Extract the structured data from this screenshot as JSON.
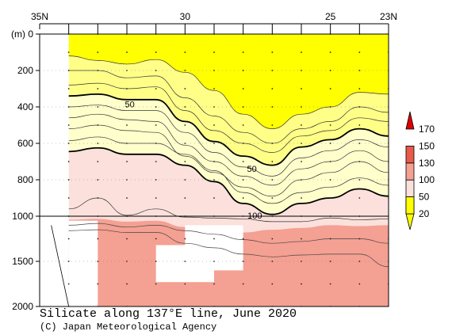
{
  "title": "Silicate along 137°E line, June 2020",
  "credit": "(C) Japan Meteorological Agency",
  "colors": {
    "yellow": "#ffff00",
    "lightyellow": "#ffff88",
    "paleyellow": "#ffffcc",
    "pink": "#fbe0dc",
    "salmon": "#f4a092",
    "red": "#e85a4a",
    "darkred": "#dd0000"
  },
  "chart_data": {
    "type": "contour",
    "variable": "Silicate",
    "x_axis": {
      "labels": [
        "35N",
        "30",
        "25",
        "23N"
      ],
      "label_positions_lat": [
        35,
        30,
        25,
        23
      ],
      "range": [
        35,
        23
      ]
    },
    "y_axis": {
      "unit_label": "(m)",
      "ticks": [
        0,
        200,
        400,
        600,
        800,
        1000,
        1500,
        2000
      ],
      "range": [
        0,
        2000
      ],
      "scale_break_at": 1000
    },
    "station_latitudes": [
      34,
      33,
      32,
      31,
      30,
      29,
      28,
      27,
      26,
      25,
      24,
      23
    ],
    "colorbar": {
      "levels": [
        20,
        50,
        100,
        130,
        150,
        170
      ],
      "labels": [
        "20",
        "50",
        "100",
        "130",
        "150",
        "170"
      ],
      "fill_colors": [
        "#ffff00",
        "#ffff88",
        "#fbe0dc",
        "#f4a092",
        "#e85a4a",
        "#dd0000"
      ]
    },
    "contour_labels": [
      {
        "text": "50",
        "lat": 31.9,
        "depth": 385
      },
      {
        "text": "50",
        "lat": 27.7,
        "depth": 740
      },
      {
        "text": "100",
        "lat": 27.6,
        "depth": 995
      }
    ],
    "isolines_depth_m": {
      "lat": [
        34,
        33,
        32,
        31,
        30,
        29,
        28,
        27,
        26,
        25,
        24,
        23
      ],
      "si_20": [
        120,
        145,
        165,
        140,
        210,
        310,
        440,
        520,
        440,
        400,
        320,
        330
      ],
      "si_30": [
        200,
        200,
        240,
        230,
        350,
        450,
        540,
        600,
        520,
        480,
        400,
        430
      ],
      "si_40": [
        280,
        270,
        300,
        290,
        420,
        530,
        600,
        650,
        560,
        530,
        460,
        480
      ],
      "si_50": [
        340,
        330,
        360,
        360,
        480,
        590,
        670,
        720,
        620,
        580,
        520,
        560
      ],
      "si_70": [
        460,
        440,
        470,
        480,
        610,
        700,
        780,
        830,
        740,
        700,
        640,
        700
      ],
      "si_100": [
        645,
        625,
        660,
        660,
        720,
        810,
        930,
        990,
        930,
        900,
        850,
        890
      ],
      "si_130": [
        960,
        900,
        995,
        960,
        1010,
        1020,
        1030,
        1060,
        1060,
        1020,
        1040,
        1030
      ]
    },
    "missing_data_note": "white areas indicate no data"
  }
}
